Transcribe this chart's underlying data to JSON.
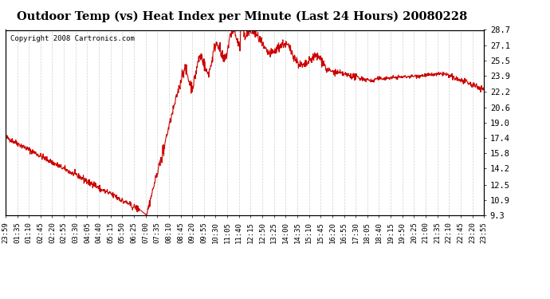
{
  "title": "Outdoor Temp (vs) Heat Index per Minute (Last 24 Hours) 20080228",
  "copyright": "Copyright 2008 Cartronics.com",
  "line_color": "#cc0000",
  "background_color": "#ffffff",
  "plot_bg_color": "#ffffff",
  "grid_color": "#cccccc",
  "yticks": [
    9.3,
    10.9,
    12.5,
    14.2,
    15.8,
    17.4,
    19.0,
    20.6,
    22.2,
    23.9,
    25.5,
    27.1,
    28.7
  ],
  "ylim": [
    9.3,
    28.7
  ],
  "xtick_labels": [
    "23:59",
    "01:35",
    "01:10",
    "02:45",
    "02:20",
    "02:55",
    "03:30",
    "04:05",
    "04:40",
    "05:15",
    "05:50",
    "06:25",
    "07:00",
    "07:35",
    "08:10",
    "08:45",
    "09:20",
    "09:55",
    "10:30",
    "11:05",
    "11:40",
    "12:15",
    "12:50",
    "13:25",
    "14:00",
    "14:35",
    "15:10",
    "15:45",
    "16:20",
    "16:55",
    "17:30",
    "18:05",
    "18:40",
    "19:15",
    "19:50",
    "20:25",
    "21:00",
    "21:35",
    "22:10",
    "22:45",
    "23:20",
    "23:55"
  ],
  "num_points": 1440
}
